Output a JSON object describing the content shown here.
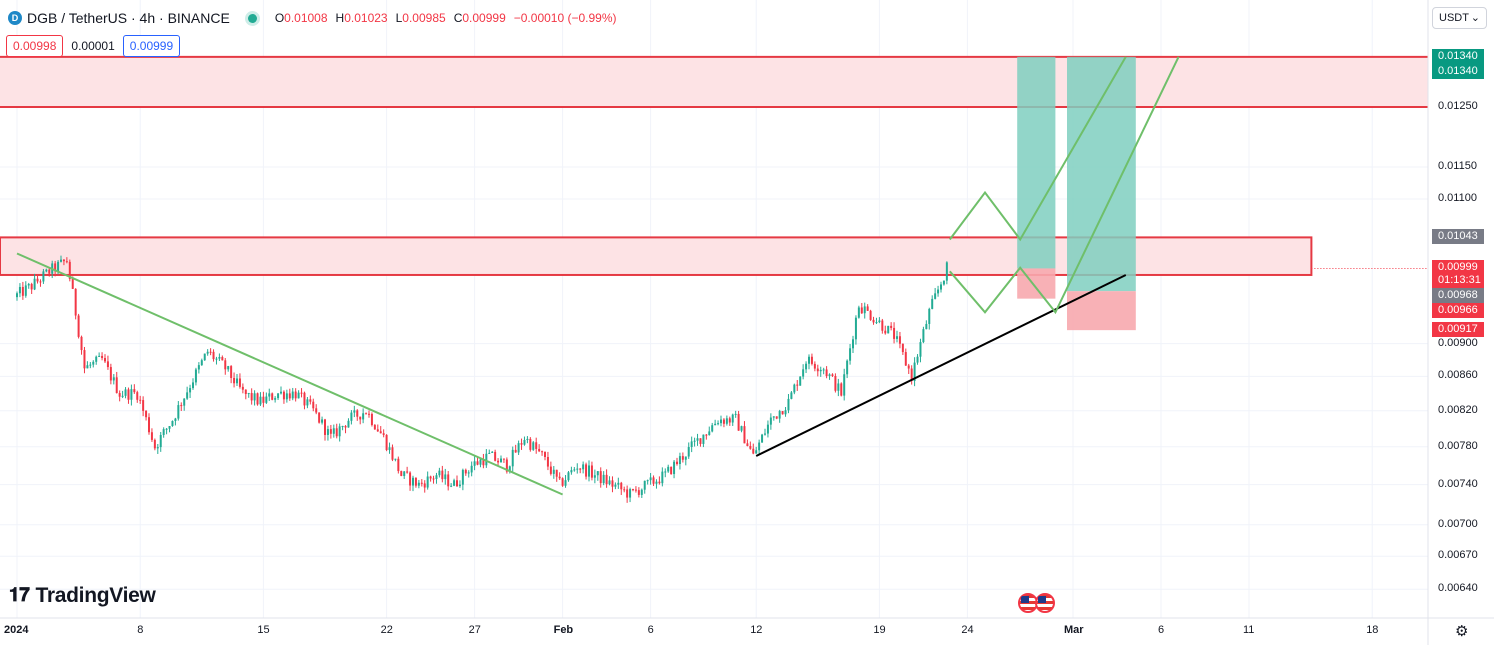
{
  "header": {
    "symbol_icon": "D",
    "title": "DGB / TetherUS · 4h · BINANCE",
    "market_status_icon": "market-open-dot",
    "ohlc": [
      {
        "k": "O",
        "v": "0.01008"
      },
      {
        "k": "H",
        "v": "0.01023"
      },
      {
        "k": "L",
        "v": "0.00985"
      },
      {
        "k": "C",
        "v": "0.00999"
      },
      {
        "k": "",
        "v": "−0.00010 (−0.99%)"
      }
    ],
    "sell_price": "0.00998",
    "spread": "0.00001",
    "buy_price": "0.00999"
  },
  "currency": "USDT",
  "logo_text": "TradingView",
  "colors": {
    "up": "#22ab94",
    "down": "#f23645",
    "zone_fill": "#fde3e5",
    "trend": "#6fbf6a",
    "support": "#000000",
    "tp": "#7fcfbf",
    "sl": "#f7a9ae"
  },
  "chart_data": {
    "type": "candlestick",
    "symbol": "DGB / TetherUS",
    "interval": "4h",
    "exchange": "BINANCE",
    "y_scale": "log",
    "ylim": [
      0.00615,
      0.0145
    ],
    "y_ticks": [
      0.0125,
      0.0115,
      0.011,
      0.009,
      0.0086,
      0.0082,
      0.0078,
      0.0074,
      0.007,
      0.0067,
      0.0064
    ],
    "x_ticks": [
      {
        "label": "2024",
        "date": "2024-01-01"
      },
      {
        "label": "8",
        "date": "2024-01-08"
      },
      {
        "label": "15",
        "date": "2024-01-15"
      },
      {
        "label": "22",
        "date": "2024-01-22"
      },
      {
        "label": "27",
        "date": "2024-01-27"
      },
      {
        "label": "Feb",
        "date": "2024-02-01"
      },
      {
        "label": "6",
        "date": "2024-02-06"
      },
      {
        "label": "12",
        "date": "2024-02-12"
      },
      {
        "label": "19",
        "date": "2024-02-19"
      },
      {
        "label": "24",
        "date": "2024-02-24"
      },
      {
        "label": "Mar",
        "date": "2024-03-01"
      },
      {
        "label": "6",
        "date": "2024-03-06"
      },
      {
        "label": "11",
        "date": "2024-03-11"
      },
      {
        "label": "18",
        "date": "2024-03-18"
      }
    ],
    "anchors": [
      [
        "2024-01-01",
        0.0096
      ],
      [
        "2024-01-02",
        0.00975
      ],
      [
        "2024-01-03",
        0.00995
      ],
      [
        "2024-01-04",
        0.0101
      ],
      [
        "2024-01-05",
        0.0087
      ],
      [
        "2024-01-06",
        0.0088
      ],
      [
        "2024-01-07",
        0.0084
      ],
      [
        "2024-01-08",
        0.0084
      ],
      [
        "2024-01-09",
        0.0078
      ],
      [
        "2024-01-10",
        0.0081
      ],
      [
        "2024-01-11",
        0.0085
      ],
      [
        "2024-01-12",
        0.0089
      ],
      [
        "2024-01-13",
        0.0087
      ],
      [
        "2024-01-14",
        0.0084
      ],
      [
        "2024-01-15",
        0.0083
      ],
      [
        "2024-01-16",
        0.0084
      ],
      [
        "2024-01-17",
        0.0084
      ],
      [
        "2024-01-18",
        0.0082
      ],
      [
        "2024-01-19",
        0.0079
      ],
      [
        "2024-01-20",
        0.0081
      ],
      [
        "2024-01-21",
        0.0082
      ],
      [
        "2024-01-22",
        0.0079
      ],
      [
        "2024-01-23",
        0.0075
      ],
      [
        "2024-01-24",
        0.0074
      ],
      [
        "2024-01-25",
        0.0075
      ],
      [
        "2024-01-26",
        0.0074
      ],
      [
        "2024-01-27",
        0.0076
      ],
      [
        "2024-01-28",
        0.0077
      ],
      [
        "2024-01-29",
        0.0076
      ],
      [
        "2024-01-30",
        0.0079
      ],
      [
        "2024-01-31",
        0.0077
      ],
      [
        "2024-02-01",
        0.0074
      ],
      [
        "2024-02-02",
        0.0076
      ],
      [
        "2024-02-03",
        0.0075
      ],
      [
        "2024-02-04",
        0.0074
      ],
      [
        "2024-02-05",
        0.0073
      ],
      [
        "2024-02-06",
        0.0074
      ],
      [
        "2024-02-07",
        0.0075
      ],
      [
        "2024-02-08",
        0.0077
      ],
      [
        "2024-02-09",
        0.0079
      ],
      [
        "2024-02-10",
        0.0081
      ],
      [
        "2024-02-11",
        0.0081
      ],
      [
        "2024-02-12",
        0.0077
      ],
      [
        "2024-02-13",
        0.0081
      ],
      [
        "2024-02-14",
        0.0083
      ],
      [
        "2024-02-15",
        0.0088
      ],
      [
        "2024-02-16",
        0.0087
      ],
      [
        "2024-02-17",
        0.0084
      ],
      [
        "2024-02-18",
        0.0095
      ],
      [
        "2024-02-19",
        0.0093
      ],
      [
        "2024-02-20",
        0.0091
      ],
      [
        "2024-02-21",
        0.0086
      ],
      [
        "2024-02-22",
        0.0094
      ],
      [
        "2024-02-23",
        0.00999
      ]
    ],
    "resistance_zone": [
      0.0125,
      0.0134
    ],
    "supply_zone": [
      0.0099,
      0.01043
    ],
    "descending_trendline": [
      [
        "2024-01-01",
        0.0102
      ],
      [
        "2024-02-01",
        0.0073
      ]
    ],
    "ascending_support": [
      [
        "2024-02-12",
        0.0077
      ],
      [
        "2024-03-04",
        0.0099
      ]
    ],
    "projected_path": [
      [
        "2024-02-23",
        0.0104
      ],
      [
        "2024-02-25",
        0.0111
      ],
      [
        "2024-02-27",
        0.0104
      ],
      [
        "2024-03-04",
        0.0134
      ]
    ],
    "projected_path_alt": [
      [
        "2024-02-23",
        0.00995
      ],
      [
        "2024-02-25",
        0.0094
      ],
      [
        "2024-02-27",
        0.01
      ],
      [
        "2024-02-29",
        0.0094
      ],
      [
        "2024-03-07",
        0.0134
      ]
    ],
    "long_position_1": {
      "entry": 0.00999,
      "target": 0.0134,
      "stop": 0.00958
    },
    "long_position_2": {
      "entry": 0.00968,
      "target": 0.0134,
      "stop": 0.00917
    },
    "price_labels": [
      {
        "value": 0.0134,
        "text": "0.01340",
        "color": "#089981"
      },
      {
        "value": 0.0134,
        "text": "0.01340",
        "color": "#089981"
      },
      {
        "value": 0.01043,
        "text": "0.01043",
        "color": "#787b86"
      },
      {
        "value": 0.00999,
        "text": "0.00999",
        "color": "#f23645",
        "sub": "01:13:31"
      },
      {
        "value": 0.00968,
        "text": "0.00968",
        "color": "#787b86"
      },
      {
        "value": 0.00966,
        "text": "0.00966",
        "color": "#f23645"
      },
      {
        "value": 0.00917,
        "text": "0.00917",
        "color": "#f23645"
      }
    ]
  }
}
